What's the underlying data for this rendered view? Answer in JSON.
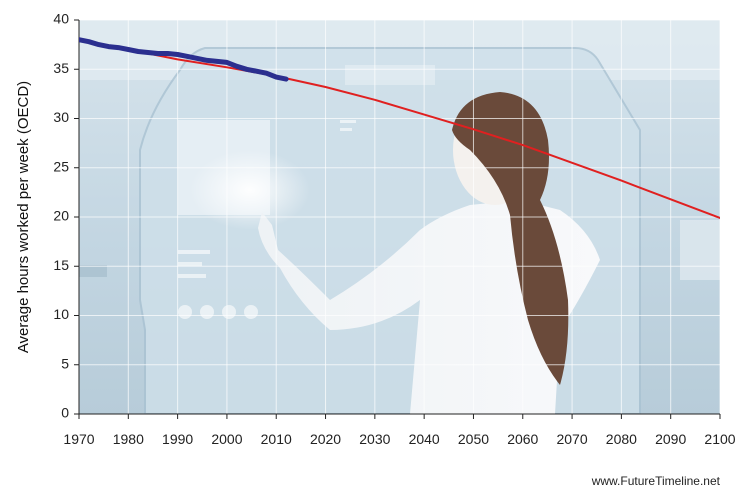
{
  "chart_data": {
    "type": "line",
    "ylabel": "Average hours worked per week (OECD)",
    "xlabel": "",
    "xlim": [
      1970,
      2100
    ],
    "ylim": [
      0,
      40
    ],
    "x_ticks": [
      1970,
      1980,
      1990,
      2000,
      2010,
      2020,
      2030,
      2040,
      2050,
      2060,
      2070,
      2080,
      2090,
      2100
    ],
    "y_ticks": [
      0,
      5,
      10,
      15,
      20,
      25,
      30,
      35,
      40
    ],
    "grid": true,
    "series": [
      {
        "color": "#2b2f8f",
        "x": [
          1970,
          1972,
          1974,
          1976,
          1978,
          1980,
          1982,
          1984,
          1986,
          1988,
          1990,
          1992,
          1994,
          1996,
          1998,
          2000,
          2002,
          2004,
          2006,
          2008,
          2010,
          2012
        ],
        "y": [
          38.0,
          37.8,
          37.5,
          37.3,
          37.2,
          37.0,
          36.8,
          36.7,
          36.6,
          36.6,
          36.5,
          36.3,
          36.1,
          35.9,
          35.8,
          35.7,
          35.3,
          35.0,
          34.8,
          34.6,
          34.2,
          34.0
        ]
      },
      {
        "color": "#e02020",
        "x": [
          1970,
          1980,
          1990,
          2000,
          2010,
          2020,
          2030,
          2040,
          2050,
          2060,
          2070,
          2080,
          2090,
          2100
        ],
        "y": [
          38.0,
          37.0,
          36.0,
          35.2,
          34.3,
          33.2,
          31.9,
          30.4,
          28.9,
          27.3,
          25.5,
          23.7,
          21.8,
          19.9
        ]
      }
    ]
  },
  "credit": "www.FutureTimeline.net",
  "background_scene": "woman-touching-holographic-interface"
}
